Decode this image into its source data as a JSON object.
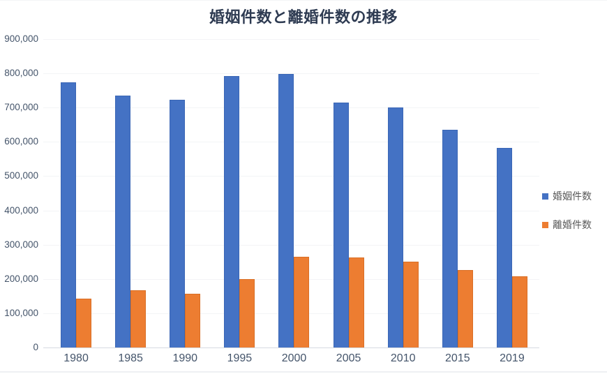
{
  "page": {
    "background_color": "#ffffff",
    "border_color": "#eef0f3"
  },
  "chart_data": {
    "type": "bar",
    "title": "婚姻件数と離婚件数の推移",
    "categories": [
      "1980",
      "1985",
      "1990",
      "1995",
      "2000",
      "2005",
      "2010",
      "2015",
      "2019"
    ],
    "series": [
      {
        "key": "marriage",
        "name": "婚姻件数",
        "color": "#4472c4",
        "border_color": "#3a66b5",
        "values": [
          774702,
          735850,
          722138,
          791888,
          798138,
          714265,
          700214,
          635156,
          583000
        ]
      },
      {
        "key": "divorce",
        "name": "離婚件数",
        "color": "#ed7d31",
        "border_color": "#d96f26",
        "values": [
          141689,
          166640,
          157608,
          199016,
          264246,
          261917,
          251378,
          226215,
          208496
        ]
      }
    ],
    "xlabel": "",
    "ylabel": "",
    "ylim": [
      0,
      900000
    ],
    "y_tick_step": 100000,
    "y_ticks_top_to_bottom": [
      "900,000",
      "800,000",
      "700,000",
      "600,000",
      "500,000",
      "400,000",
      "300,000",
      "200,000",
      "100,000",
      "0"
    ],
    "grid": true,
    "gridline_color": "#f3f4f6",
    "axis_line_color": "#d6dae1",
    "tick_label_color": "#44546a",
    "title_color": "#2e3b52",
    "legend_position": "right",
    "legend_text_color": "#595959"
  }
}
